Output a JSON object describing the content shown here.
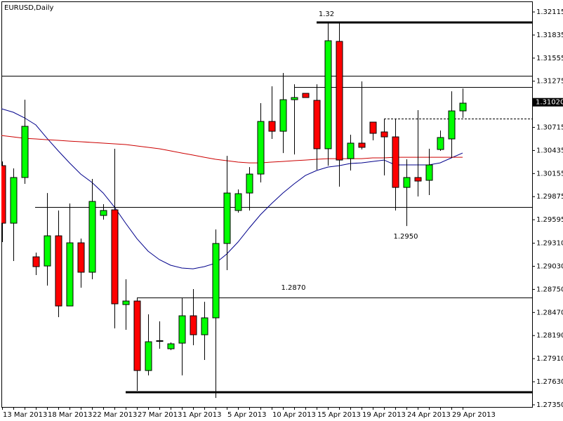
{
  "chart_data": {
    "type": "candlestick",
    "title": "EURUSD,Daily",
    "categories": [
      "13 Mar 2013",
      null,
      null,
      null,
      "18 Mar 2013",
      null,
      null,
      null,
      "22 Mar 2013",
      null,
      null,
      null,
      "27 Mar 2013",
      null,
      null,
      null,
      "1 Apr 2013",
      null,
      null,
      null,
      "5 Apr 2013",
      null,
      null,
      null,
      "10 Apr 2013",
      null,
      null,
      null,
      "15 Apr 2013",
      null,
      null,
      null,
      "19 Apr 2013",
      null,
      null,
      null,
      "24 Apr 2013",
      null,
      null,
      null,
      "29 Apr 2013",
      null
    ],
    "open": [
      1.30251,
      1.29553,
      1.30107,
      1.29145,
      1.29034,
      1.294,
      1.28549,
      1.29315,
      1.28958,
      1.29647,
      1.29715,
      1.28566,
      1.28609,
      1.27766,
      1.2812,
      1.2803,
      1.28098,
      1.2843,
      1.282,
      1.28405,
      1.29307,
      1.29707,
      1.29919,
      1.30149,
      1.30787,
      1.30668,
      1.31051,
      1.31128,
      1.31043,
      1.30456,
      1.31758,
      1.30336,
      1.30524,
      1.30779,
      1.3066,
      1.306,
      1.29987,
      1.30107,
      1.30073,
      1.30447,
      1.30575,
      1.30915
    ],
    "high": [
      1.30302,
      1.30217,
      1.31051,
      1.29196,
      1.29919,
      1.29707,
      1.29792,
      1.29366,
      1.3009,
      1.29783,
      1.30456,
      1.28873,
      1.28651,
      1.28447,
      1.28362,
      1.28107,
      1.28651,
      1.28754,
      1.286,
      1.29477,
      1.3037,
      1.29962,
      1.30234,
      1.31009,
      1.31213,
      1.31375,
      1.31238,
      1.31128,
      1.31238,
      1.31987,
      1.31987,
      1.30626,
      1.31273,
      1.30779,
      1.30813,
      1.30821,
      1.30328,
      1.30924,
      1.30456,
      1.30677,
      1.31153,
      1.31187
    ],
    "low": [
      1.29324,
      1.29094,
      1.3003,
      1.28924,
      1.28796,
      1.28413,
      1.28549,
      1.28771,
      1.28873,
      1.29596,
      1.28277,
      1.2826,
      1.2752,
      1.27707,
      1.2803,
      1.28013,
      1.27707,
      1.28073,
      1.27894,
      1.27434,
      1.28983,
      1.29681,
      1.29707,
      1.30047,
      1.30575,
      1.30404,
      1.30387,
      1.31077,
      1.302,
      1.30251,
      1.29996,
      1.30192,
      1.30447,
      1.30558,
      1.30132,
      1.29707,
      1.29519,
      1.29877,
      1.29894,
      1.3043,
      1.30345,
      1.3083
    ],
    "close": [
      1.29553,
      1.30107,
      1.30728,
      1.29026,
      1.294,
      1.28549,
      1.29315,
      1.28958,
      1.29817,
      1.29707,
      1.28575,
      1.28609,
      1.27766,
      1.28115,
      1.28128,
      1.2809,
      1.2843,
      1.282,
      1.28405,
      1.29307,
      1.29919,
      1.29911,
      1.30149,
      1.30787,
      1.30668,
      1.31051,
      1.31077,
      1.31077,
      1.30456,
      1.31766,
      1.30319,
      1.30524,
      1.30473,
      1.30643,
      1.306,
      1.29987,
      1.30107,
      1.30064,
      1.3026,
      1.30592,
      1.30915,
      1.31009
    ],
    "up_color": "#00ff00",
    "down_color": "#ff0000",
    "lines": [
      {
        "color": "#00008b",
        "values": [
          1.30941,
          1.30898,
          1.3083,
          1.30745,
          1.30583,
          1.3043,
          1.30285,
          1.30149,
          1.30047,
          1.29919,
          1.29749,
          1.29553,
          1.29366,
          1.29213,
          1.29111,
          1.29043,
          1.29009,
          1.29,
          1.29026,
          1.29068,
          1.29179,
          1.29324,
          1.29494,
          1.29656,
          1.29792,
          1.29919,
          1.3003,
          1.30132,
          1.30192,
          1.30234,
          1.30251,
          1.30277,
          1.30285,
          1.30302,
          1.30319,
          1.3026,
          1.3026,
          1.3026,
          1.3026,
          1.30285,
          1.30345,
          1.30404
        ]
      },
      {
        "color": "#cc0000",
        "values": [
          1.30617,
          1.306,
          1.30583,
          1.30575,
          1.30566,
          1.30558,
          1.30549,
          1.30541,
          1.30532,
          1.30524,
          1.30515,
          1.30507,
          1.3049,
          1.30473,
          1.30456,
          1.3043,
          1.30404,
          1.30379,
          1.30353,
          1.30328,
          1.30311,
          1.30294,
          1.30285,
          1.30285,
          1.30294,
          1.30302,
          1.30311,
          1.30319,
          1.30328,
          1.30336,
          1.30336,
          1.30336,
          1.30336,
          1.30345,
          1.30345,
          1.30353,
          1.30353,
          1.30353,
          1.30353,
          1.30353,
          1.30353,
          1.30353
        ]
      }
    ],
    "levels": [
      1.31987,
      1.31341,
      1.31204,
      1.30821,
      1.29749,
      1.28651,
      1.27503
    ],
    "annotations": [
      "1.32",
      "1.2950",
      "1.2870"
    ],
    "price_label": {
      "value": 1.3102,
      "label": "1.31020"
    },
    "ylim": [
      1.27324,
      1.32243
    ],
    "yticks": [
      1.32115,
      1.31835,
      1.31555,
      1.31275,
      1.30715,
      1.30435,
      1.30155,
      1.29875,
      1.29595,
      {
        "value": 1.2931,
        "label": "1.29310"
      },
      {
        "value": 1.2903,
        "label": "1.29030"
      },
      {
        "value": 1.2875,
        "label": "1.28750"
      },
      {
        "value": 1.2847,
        "label": "1.28470"
      },
      {
        "value": 1.2819,
        "label": "1.28190"
      },
      {
        "value": 1.2791,
        "label": "1.27910"
      },
      {
        "value": 1.2763,
        "label": "1.27630"
      },
      {
        "value": 1.2735,
        "label": "1.27350"
      }
    ]
  }
}
